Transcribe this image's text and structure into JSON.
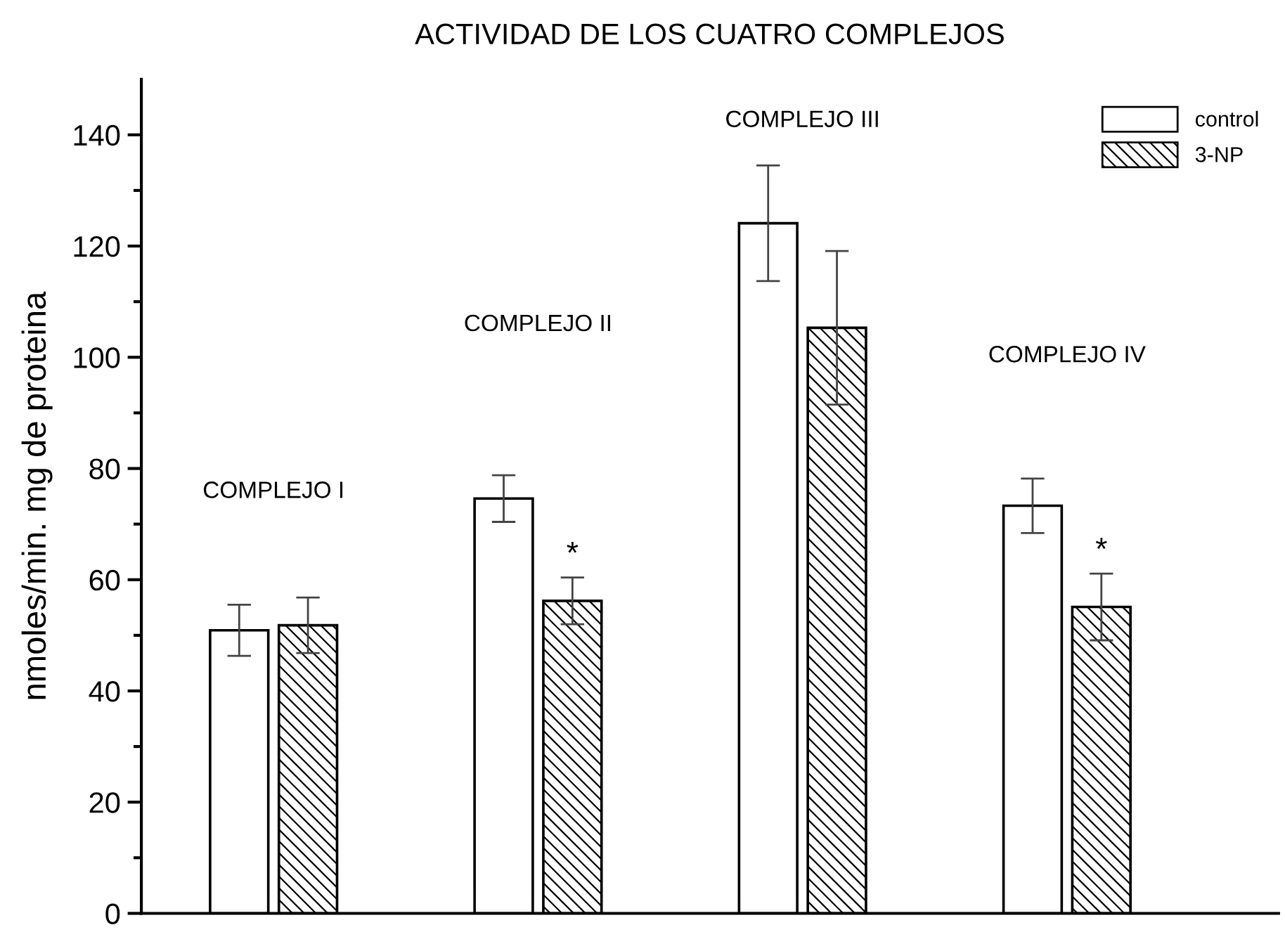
{
  "chart_data": {
    "type": "bar",
    "title": "ACTIVIDAD DE LOS CUATRO COMPLEJOS",
    "ylabel": "nmoles/min. mg de proteina",
    "categories": [
      null,
      null,
      null,
      null
    ],
    "series": [
      {
        "name": "control",
        "color": "#ffffff",
        "values": [
          50.9,
          74.6,
          124.1,
          73.3
        ],
        "errors": [
          4.6,
          4.2,
          10.4,
          4.9
        ]
      },
      {
        "name": "3-NP",
        "color": "#000000",
        "values": [
          51.8,
          56.2,
          105.3,
          55.1
        ],
        "errors": [
          5,
          4.2,
          13.8,
          6
        ]
      }
    ],
    "ylim": [
      0,
      150
    ],
    "yticks": [
      0,
      20,
      40,
      60,
      80,
      100,
      120,
      140
    ],
    "annotations": [
      "COMPLEJO I",
      "COMPLEJO II",
      "COMPLEJO III",
      "COMPLEJO IV",
      "*",
      "*"
    ],
    "legend": "top right",
    "grid": false,
    "tick_labels": "y"
  }
}
